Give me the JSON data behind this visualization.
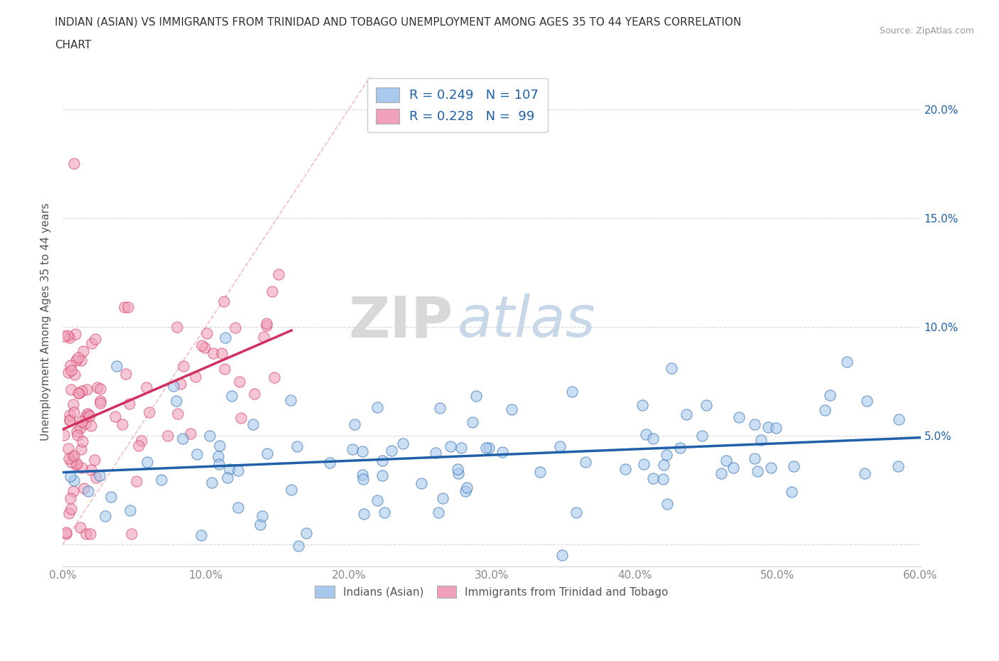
{
  "title_line1": "INDIAN (ASIAN) VS IMMIGRANTS FROM TRINIDAD AND TOBAGO UNEMPLOYMENT AMONG AGES 35 TO 44 YEARS CORRELATION",
  "title_line2": "CHART",
  "source_text": "Source: ZipAtlas.com",
  "ylabel": "Unemployment Among Ages 35 to 44 years",
  "xlim": [
    0.0,
    0.6
  ],
  "ylim": [
    -0.01,
    0.215
  ],
  "xticks": [
    0.0,
    0.1,
    0.2,
    0.3,
    0.4,
    0.5,
    0.6
  ],
  "xticklabels": [
    "0.0%",
    "10.0%",
    "20.0%",
    "30.0%",
    "40.0%",
    "50.0%",
    "60.0%"
  ],
  "yticks": [
    0.0,
    0.05,
    0.1,
    0.15,
    0.2
  ],
  "yticklabels_left": [
    "",
    "",
    "",
    "",
    ""
  ],
  "yticklabels_right": [
    "",
    "5.0%",
    "10.0%",
    "15.0%",
    "20.0%"
  ],
  "watermark_zip": "ZIP",
  "watermark_atlas": "atlas",
  "legend_text1": "R = 0.249   N = 107",
  "legend_text2": "R = 0.228   N =  99",
  "color_indian": "#a8c8ee",
  "color_trinidad": "#f0a0b8",
  "color_indian_line": "#2060a8",
  "color_trinidad_line": "#d03060",
  "color_diagonal": "#e08080",
  "background_color": "#ffffff",
  "grid_color": "#d0d0d0",
  "tick_color": "#888888",
  "legend_label1": "Indians (Asian)",
  "legend_label2": "Immigrants from Trinidad and Tobago"
}
